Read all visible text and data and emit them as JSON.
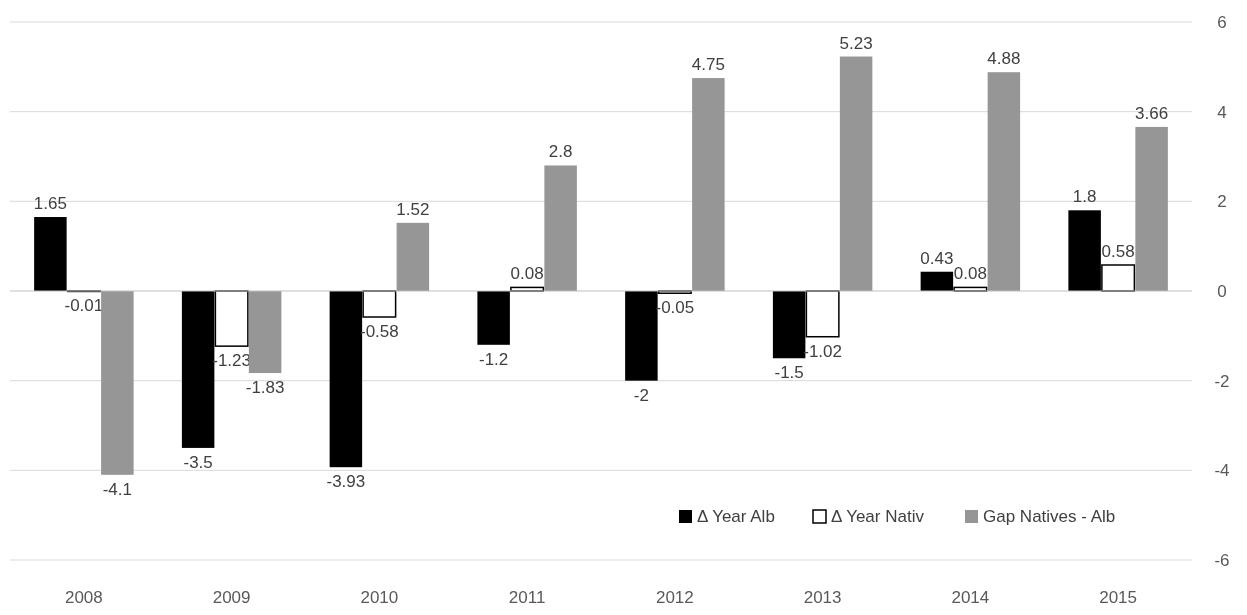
{
  "chart_data": {
    "type": "bar",
    "categories": [
      "2008",
      "2009",
      "2010",
      "2011",
      "2012",
      "2013",
      "2014",
      "2015"
    ],
    "series": [
      {
        "name": "Δ Year Alb",
        "color": "#000000",
        "values": [
          1.65,
          -3.5,
          -3.93,
          -1.2,
          -2,
          -1.5,
          0.43,
          1.8
        ]
      },
      {
        "name": "Δ Year Nativ",
        "color": "#ffffff",
        "values": [
          -0.01,
          -1.23,
          -0.58,
          0.08,
          -0.05,
          -1.02,
          0.08,
          0.58
        ]
      },
      {
        "name": "Gap Natives - Alb",
        "color": "#969696",
        "values": [
          -4.1,
          -1.83,
          1.52,
          2.8,
          4.75,
          5.23,
          4.88,
          3.66
        ]
      }
    ],
    "ylim": [
      -6,
      6
    ],
    "yticks": [
      -6,
      -4,
      -2,
      0,
      2,
      4,
      6
    ],
    "grid": "y",
    "legend": "bottom right",
    "data_labels": true
  }
}
